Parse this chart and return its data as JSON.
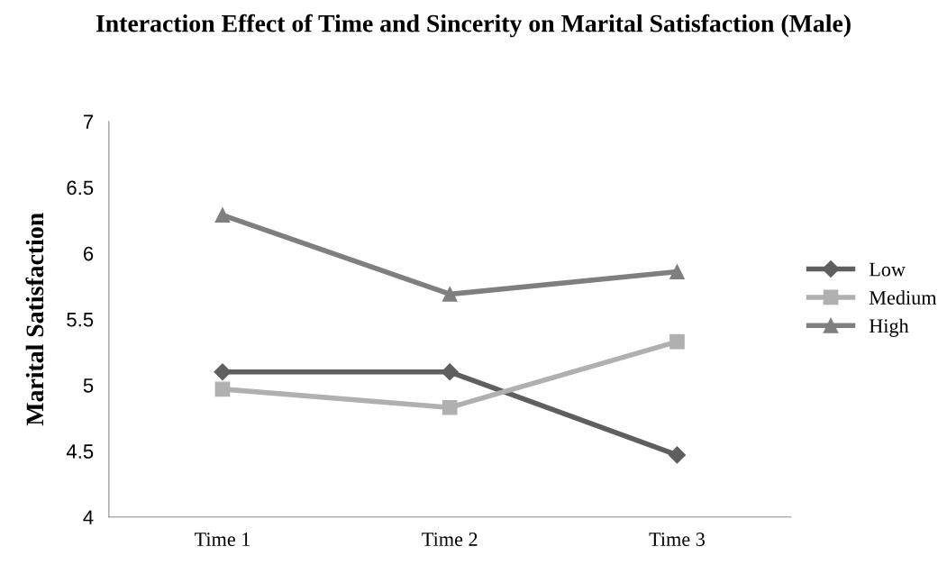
{
  "chart_data": {
    "type": "line",
    "title": "Interaction Effect of Time and Sincerity on Marital Satisfaction (Male)",
    "ylabel": "Marital Satisfaction",
    "categories": [
      "Time 1",
      "Time 2",
      "Time 3"
    ],
    "series": [
      {
        "name": "Low",
        "color": "#5f5f5f",
        "marker": "diamond",
        "values": [
          5.1,
          5.1,
          4.47
        ]
      },
      {
        "name": "Medium",
        "color": "#b0b0b0",
        "marker": "square",
        "values": [
          4.97,
          4.83,
          5.33
        ]
      },
      {
        "name": "High",
        "color": "#7f7f7f",
        "marker": "triangle",
        "values": [
          6.29,
          5.69,
          5.86
        ]
      }
    ],
    "ylim": [
      4,
      7
    ],
    "yticks": [
      4,
      4.5,
      5,
      5.5,
      6,
      6.5,
      7
    ],
    "grid": false,
    "legend": "right",
    "line_style": "solid"
  }
}
